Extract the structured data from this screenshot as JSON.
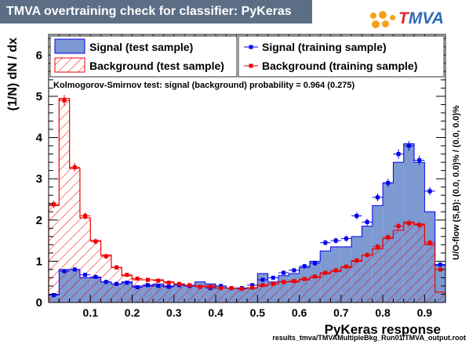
{
  "header": {
    "title": "TMVA overtraining check for classifier: PyKeras",
    "logo_text": "TMVA",
    "logo_first_letter": "T",
    "logo_rest": "MVA"
  },
  "footer_text": "results_tmva/TMVAMultipleBkg_Run01/TMVA_output.root",
  "side_label": "U/O-flow (S,B): (0.0, 0.0)% / (0.0, 0.0)%",
  "colors": {
    "signal_fill": "#7d99d1",
    "signal_line": "#0000ee",
    "background_line": "#ee0000",
    "title_bg": "#5c6e86"
  },
  "chart_data": {
    "type": "histogram",
    "title": "TMVA overtraining check for classifier: PyKeras",
    "xlabel": "PyKeras response",
    "ylabel": "(1/N) dN / dx",
    "xlim": [
      0.0,
      0.95
    ],
    "ylim": [
      0,
      6.5
    ],
    "x_ticks": [
      0.1,
      0.2,
      0.3,
      0.4,
      0.5,
      0.6,
      0.7,
      0.8,
      0.9
    ],
    "y_ticks": [
      0,
      1,
      2,
      3,
      4,
      5,
      6
    ],
    "annotation": "Kolmogorov-Smirnov test: signal (background) probability = 0.964 (0.275)",
    "bin_edges": [
      0.0,
      0.025,
      0.05,
      0.075,
      0.1,
      0.125,
      0.15,
      0.175,
      0.2,
      0.225,
      0.25,
      0.275,
      0.3,
      0.325,
      0.35,
      0.375,
      0.4,
      0.425,
      0.45,
      0.475,
      0.5,
      0.525,
      0.55,
      0.575,
      0.6,
      0.625,
      0.65,
      0.675,
      0.7,
      0.725,
      0.75,
      0.775,
      0.8,
      0.825,
      0.85,
      0.875,
      0.9,
      0.925,
      0.95
    ],
    "legend": [
      {
        "name": "Signal (test sample)",
        "style": "filled-box"
      },
      {
        "name": "Signal (training sample)",
        "style": "marker"
      },
      {
        "name": "Background (test sample)",
        "style": "hatched-box"
      },
      {
        "name": "Background (training sample)",
        "style": "marker"
      }
    ],
    "series": [
      {
        "name": "Signal (test sample)",
        "values": [
          0.2,
          0.8,
          0.8,
          0.6,
          0.6,
          0.5,
          0.45,
          0.5,
          0.4,
          0.4,
          0.45,
          0.4,
          0.45,
          0.4,
          0.5,
          0.45,
          0.4,
          0.35,
          0.35,
          0.35,
          0.7,
          0.5,
          0.65,
          0.7,
          0.85,
          1.0,
          1.25,
          1.35,
          1.35,
          1.6,
          1.85,
          2.35,
          2.9,
          3.4,
          3.85,
          3.4,
          2.2,
          0.9
        ]
      },
      {
        "name": "Signal (training sample)",
        "values": [
          0.18,
          0.76,
          0.8,
          0.67,
          0.62,
          0.5,
          0.45,
          0.48,
          0.37,
          0.42,
          0.4,
          0.38,
          0.42,
          0.4,
          0.38,
          0.35,
          0.4,
          0.35,
          0.35,
          0.42,
          0.55,
          0.6,
          0.72,
          0.78,
          0.88,
          0.95,
          1.45,
          1.5,
          1.55,
          2.1,
          1.95,
          2.55,
          2.9,
          3.6,
          3.8,
          3.45,
          2.7,
          0.92
        ]
      },
      {
        "name": "Background (test sample)",
        "values": [
          2.35,
          4.95,
          3.25,
          2.05,
          1.5,
          1.15,
          0.85,
          0.65,
          0.55,
          0.55,
          0.55,
          0.5,
          0.45,
          0.4,
          0.4,
          0.4,
          0.35,
          0.35,
          0.35,
          0.35,
          0.4,
          0.45,
          0.5,
          0.5,
          0.55,
          0.6,
          0.7,
          0.75,
          0.85,
          1.0,
          1.15,
          1.3,
          1.55,
          1.75,
          1.95,
          1.9,
          1.4,
          0.25
        ]
      },
      {
        "name": "Background (training sample)",
        "values": [
          2.38,
          4.9,
          3.28,
          2.1,
          1.48,
          1.12,
          0.85,
          0.67,
          0.58,
          0.55,
          0.53,
          0.48,
          0.45,
          0.42,
          0.38,
          0.38,
          0.35,
          0.35,
          0.33,
          0.36,
          0.42,
          0.45,
          0.5,
          0.52,
          0.57,
          0.63,
          0.72,
          0.78,
          0.87,
          1.02,
          1.15,
          1.35,
          1.58,
          1.85,
          1.92,
          1.88,
          1.45,
          0.8
        ]
      }
    ]
  }
}
